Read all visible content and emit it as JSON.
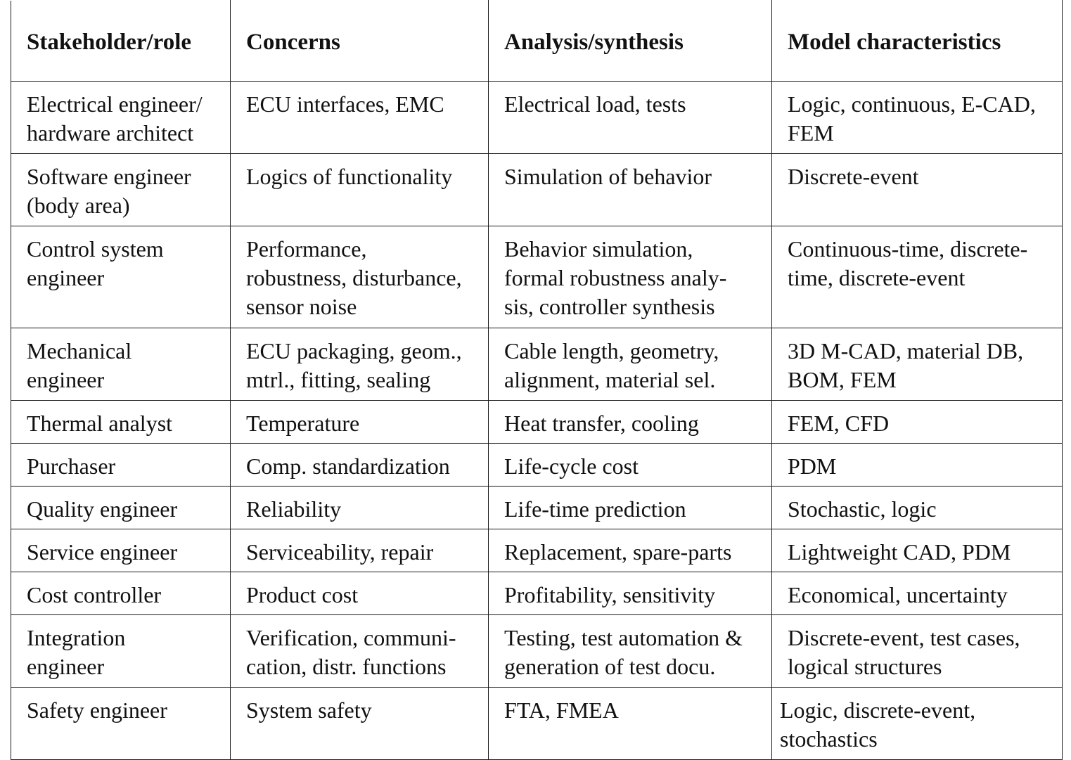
{
  "table": {
    "headers": [
      "Stakeholder/role",
      "Concerns",
      "Analysis/synthesis",
      "Model characteristics"
    ],
    "rows": [
      [
        "Electrical engineer/\nhardware architect",
        "ECU interfaces, EMC",
        "Electrical load, tests",
        "Logic, continuous, E-CAD,\nFEM"
      ],
      [
        "Software engineer\n(body area)",
        "Logics of functionality",
        "Simulation of behavior",
        "Discrete-event"
      ],
      [
        "Control system\nengineer",
        "Performance,\nrobustness, disturbance,\nsensor noise",
        "Behavior simulation,\nformal robustness analy-\nsis, controller synthesis",
        "Continuous-time, discrete-\ntime, discrete-event"
      ],
      [
        "Mechanical\nengineer",
        "ECU packaging, geom.,\nmtrl., fitting, sealing",
        "Cable length, geometry,\nalignment, material  sel.",
        "3D M-CAD, material DB,\nBOM, FEM"
      ],
      [
        "Thermal analyst",
        "Temperature",
        "Heat transfer, cooling",
        "FEM, CFD"
      ],
      [
        "Purchaser",
        "Comp. standardization",
        "Life-cycle cost",
        "PDM"
      ],
      [
        "Quality engineer",
        "Reliability",
        "Life-time prediction",
        "Stochastic, logic"
      ],
      [
        "Service engineer",
        "Serviceability, repair",
        "Replacement, spare-parts",
        "Lightweight CAD, PDM"
      ],
      [
        "Cost controller",
        "Product cost",
        "Profitability, sensitivity",
        "Economical, uncertainty"
      ],
      [
        "Integration\nengineer",
        "Verification, communi-\ncation, distr. functions",
        "Testing, test automation &\ngeneration of test docu.",
        "Discrete-event, test cases,\nlogical structures"
      ],
      [
        "Safety engineer",
        "System safety",
        "FTA, FMEA",
        "Logic, discrete-event,\nstochastics"
      ]
    ]
  }
}
